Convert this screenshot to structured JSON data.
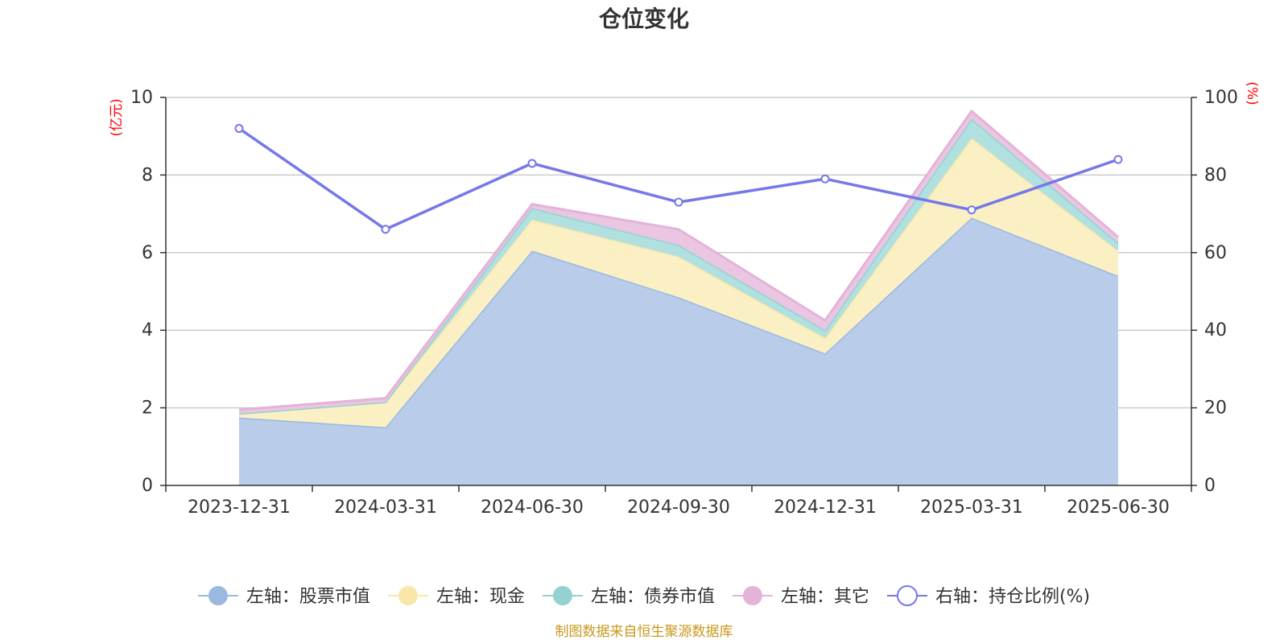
{
  "chart_data": {
    "type": "area",
    "title": "仓位变化",
    "categories": [
      "2023-12-31",
      "2024-03-31",
      "2024-06-30",
      "2024-09-30",
      "2024-12-31",
      "2025-03-31",
      "2025-06-30"
    ],
    "left_axis": {
      "unit": "(亿元)",
      "ylim": [
        0,
        10
      ],
      "ticks": [
        0,
        2,
        4,
        6,
        8,
        10
      ]
    },
    "right_axis": {
      "unit": "(%)",
      "ylim": [
        0,
        100
      ],
      "ticks": [
        0,
        20,
        40,
        60,
        80,
        100
      ]
    },
    "stacked": true,
    "series": [
      {
        "name": "左轴：股票市值",
        "axis": "left",
        "kind": "area",
        "color": "#9bb8e0",
        "fill": "#b9cdea",
        "values": [
          1.75,
          1.5,
          6.05,
          4.85,
          3.4,
          6.9,
          5.4
        ]
      },
      {
        "name": "左轴：现金",
        "axis": "left",
        "kind": "area",
        "color": "#f8e7a8",
        "fill": "#faf0c4",
        "values": [
          0.1,
          0.65,
          0.8,
          1.05,
          0.4,
          2.05,
          0.65
        ]
      },
      {
        "name": "左轴：债券市值",
        "axis": "left",
        "kind": "area",
        "color": "#93d2d0",
        "fill": "#b0e0df",
        "values": [
          0.0,
          0.0,
          0.3,
          0.3,
          0.2,
          0.5,
          0.2
        ]
      },
      {
        "name": "左轴：其它",
        "axis": "left",
        "kind": "area",
        "color": "#e3b3d8",
        "fill": "#ebc6e2",
        "values": [
          0.1,
          0.1,
          0.1,
          0.4,
          0.25,
          0.2,
          0.15
        ]
      },
      {
        "name": "右轴：持仓比例(%)",
        "axis": "right",
        "kind": "line",
        "color": "#7578e8",
        "values": [
          92,
          66,
          83,
          73,
          79,
          71,
          84
        ]
      }
    ],
    "grid": true,
    "legend_position": "bottom"
  },
  "source_note": "制图数据来自恒生聚源数据库"
}
